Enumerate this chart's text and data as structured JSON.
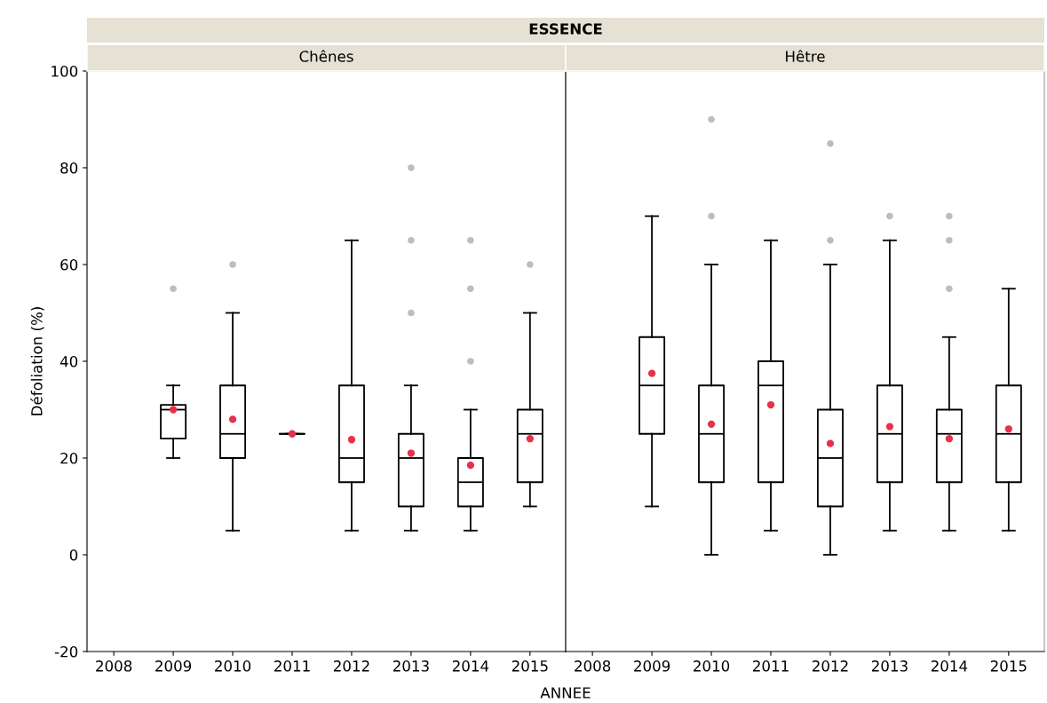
{
  "chart_data": [
    {
      "type": "box",
      "title": "Chênes",
      "xlabel": "ANNEE",
      "ylabel": "Défoliation (%)",
      "annotations": [
        "ESSENCE"
      ],
      "categories": [
        "2008",
        "2009",
        "2010",
        "2011",
        "2012",
        "2013",
        "2014",
        "2015"
      ],
      "ylim": [
        -20,
        100
      ],
      "yticks": [
        -20,
        0,
        20,
        40,
        60,
        80,
        100
      ],
      "boxes": [
        null,
        {
          "low": 20,
          "q1": 24,
          "median": 30,
          "q3": 31,
          "high": 35,
          "mean": 30,
          "outliers": [
            55
          ]
        },
        {
          "low": 5,
          "q1": 20,
          "median": 25,
          "q3": 35,
          "high": 50,
          "mean": 28,
          "outliers": [
            60
          ]
        },
        {
          "low": 25,
          "q1": 25,
          "median": 25,
          "q3": 25,
          "high": 25,
          "mean": 25
        },
        {
          "low": 5,
          "q1": 15,
          "median": 20,
          "q3": 35,
          "high": 65,
          "mean": 23.8
        },
        {
          "low": 5,
          "q1": 10,
          "median": 20,
          "q3": 25,
          "high": 35,
          "mean": 21,
          "outliers": [
            50,
            65,
            80
          ]
        },
        {
          "low": 5,
          "q1": 10,
          "median": 15,
          "q3": 20,
          "high": 30,
          "mean": 18.5,
          "outliers": [
            40,
            55,
            65
          ]
        },
        {
          "low": 10,
          "q1": 15,
          "median": 25,
          "q3": 30,
          "high": 50,
          "mean": 24,
          "outliers": [
            60
          ]
        }
      ]
    },
    {
      "type": "box",
      "title": "Hêtre",
      "categories": [
        "2008",
        "2009",
        "2010",
        "2011",
        "2012",
        "2013",
        "2014",
        "2015"
      ],
      "ylim": [
        -20,
        100
      ],
      "yticks": [
        -20,
        0,
        20,
        40,
        60,
        80,
        100
      ],
      "tick_labels": "x",
      "boxes": [
        null,
        {
          "low": 10,
          "q1": 25,
          "median": 35,
          "q3": 45,
          "high": 70,
          "mean": 37.5
        },
        {
          "low": 0,
          "q1": 15,
          "median": 25,
          "q3": 35,
          "high": 60,
          "mean": 27,
          "outliers": [
            70,
            90
          ]
        },
        {
          "low": 5,
          "q1": 15,
          "median": 35,
          "q3": 40,
          "high": 65,
          "mean": 31
        },
        {
          "low": 0,
          "q1": 10,
          "median": 20,
          "q3": 30,
          "high": 60,
          "mean": 23,
          "outliers": [
            65,
            85
          ]
        },
        {
          "low": 5,
          "q1": 15,
          "median": 25,
          "q3": 35,
          "high": 65,
          "mean": 26.5,
          "outliers": [
            70
          ]
        },
        {
          "low": 5,
          "q1": 15,
          "median": 25,
          "q3": 30,
          "high": 45,
          "mean": 24,
          "outliers": [
            55,
            65,
            70
          ]
        },
        {
          "low": 5,
          "q1": 15,
          "median": 25,
          "q3": 35,
          "high": 55,
          "mean": 26
        }
      ]
    }
  ]
}
